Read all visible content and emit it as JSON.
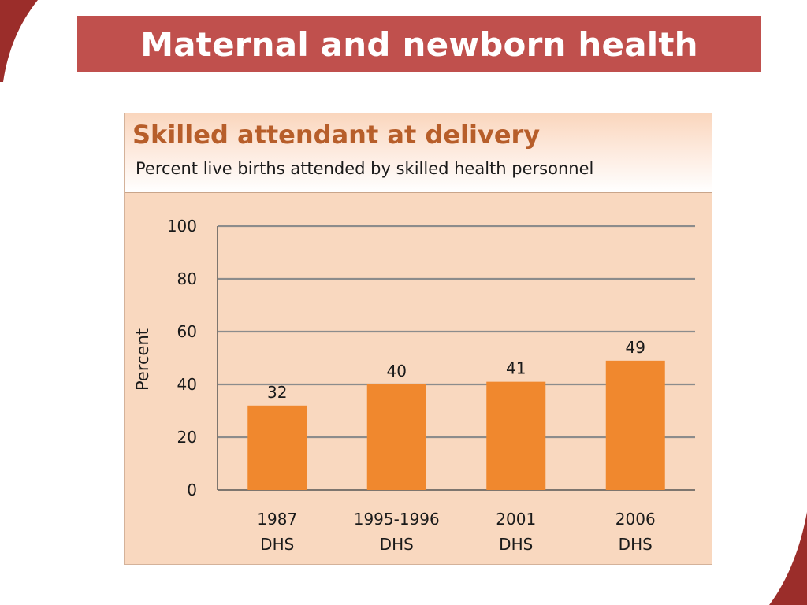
{
  "slide": {
    "title": "Maternal and newborn health",
    "accent_color": "#c0504d"
  },
  "chart_data": {
    "type": "bar",
    "title": "Skilled attendant at delivery",
    "subtitle": "Percent live births attended by skilled health personnel",
    "ylabel": "Percent",
    "xlabel": "",
    "categories": [
      [
        "1987",
        "DHS"
      ],
      [
        "1995-1996",
        "DHS"
      ],
      [
        "2001",
        "DHS"
      ],
      [
        "2006",
        "DHS"
      ]
    ],
    "values": [
      32,
      40,
      41,
      49
    ],
    "data_labels": [
      "32",
      "40",
      "41",
      "49"
    ],
    "ylim": [
      0,
      100
    ],
    "yticks": [
      0,
      20,
      40,
      60,
      80,
      100
    ],
    "grid": true,
    "legend": "none",
    "bar_color": "#f0882e",
    "background_color": "#f9d8bf",
    "title_color": "#b75e2a"
  }
}
